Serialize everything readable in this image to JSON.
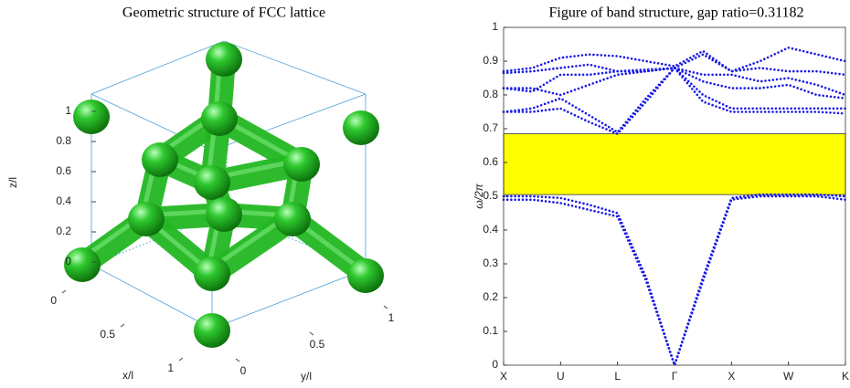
{
  "chart_data": [
    {
      "type": "structure3d",
      "title": "Geometric structure of FCC lattice",
      "xlabel": "x/l",
      "ylabel": "y/l",
      "zlabel": "z/l",
      "xlim": [
        0,
        1
      ],
      "ylim": [
        0,
        1
      ],
      "zlim": [
        0,
        1
      ],
      "xticks": [
        0,
        0.5,
        1
      ],
      "yticks": [
        0,
        0.5,
        1
      ],
      "zticks": [
        0,
        0.2,
        0.4,
        0.6,
        0.8,
        1
      ],
      "color": "#22b822"
    },
    {
      "type": "band",
      "title": "Figure of band structure, gap ratio=0.31182",
      "ylabel": "ω/2π",
      "color": "#1a1ae6",
      "gap_color": "#ffff00",
      "xlim": [
        0,
        6
      ],
      "ylim": [
        0,
        1
      ],
      "xticks": [
        {
          "value": 0,
          "label": "X"
        },
        {
          "value": 1,
          "label": "U"
        },
        {
          "value": 2,
          "label": "L"
        },
        {
          "value": 3,
          "label": "Γ"
        },
        {
          "value": 4,
          "label": "X"
        },
        {
          "value": 5,
          "label": "W"
        },
        {
          "value": 6,
          "label": "K"
        }
      ],
      "yticks": [
        0,
        0.1,
        0.2,
        0.3,
        0.4,
        0.5,
        0.6,
        0.7,
        0.8,
        0.9,
        1
      ],
      "gap": [
        0.505,
        0.685
      ],
      "x": [
        0,
        0.5,
        1,
        1.5,
        2,
        2.5,
        3,
        3.5,
        4,
        4.5,
        5,
        5.5,
        6
      ],
      "bands": [
        [
          0.49,
          0.49,
          0.48,
          0.46,
          0.44,
          0.25,
          0,
          0.25,
          0.49,
          0.5,
          0.5,
          0.5,
          0.49
        ],
        [
          0.5,
          0.5,
          0.495,
          0.475,
          0.45,
          0.26,
          0,
          0.26,
          0.495,
          0.505,
          0.505,
          0.505,
          0.5
        ],
        [
          0.75,
          0.75,
          0.76,
          0.72,
          0.685,
          0.78,
          0.88,
          0.78,
          0.75,
          0.75,
          0.75,
          0.75,
          0.745
        ],
        [
          0.75,
          0.76,
          0.79,
          0.74,
          0.69,
          0.79,
          0.88,
          0.8,
          0.76,
          0.76,
          0.76,
          0.76,
          0.76
        ],
        [
          0.82,
          0.82,
          0.8,
          0.83,
          0.86,
          0.87,
          0.88,
          0.84,
          0.82,
          0.82,
          0.83,
          0.8,
          0.79
        ],
        [
          0.82,
          0.81,
          0.86,
          0.86,
          0.87,
          0.87,
          0.88,
          0.86,
          0.86,
          0.84,
          0.85,
          0.83,
          0.8
        ],
        [
          0.865,
          0.87,
          0.88,
          0.89,
          0.87,
          0.875,
          0.88,
          0.92,
          0.87,
          0.88,
          0.87,
          0.87,
          0.86
        ],
        [
          0.87,
          0.88,
          0.91,
          0.92,
          0.915,
          0.9,
          0.885,
          0.93,
          0.87,
          0.9,
          0.94,
          0.92,
          0.9
        ]
      ]
    }
  ]
}
